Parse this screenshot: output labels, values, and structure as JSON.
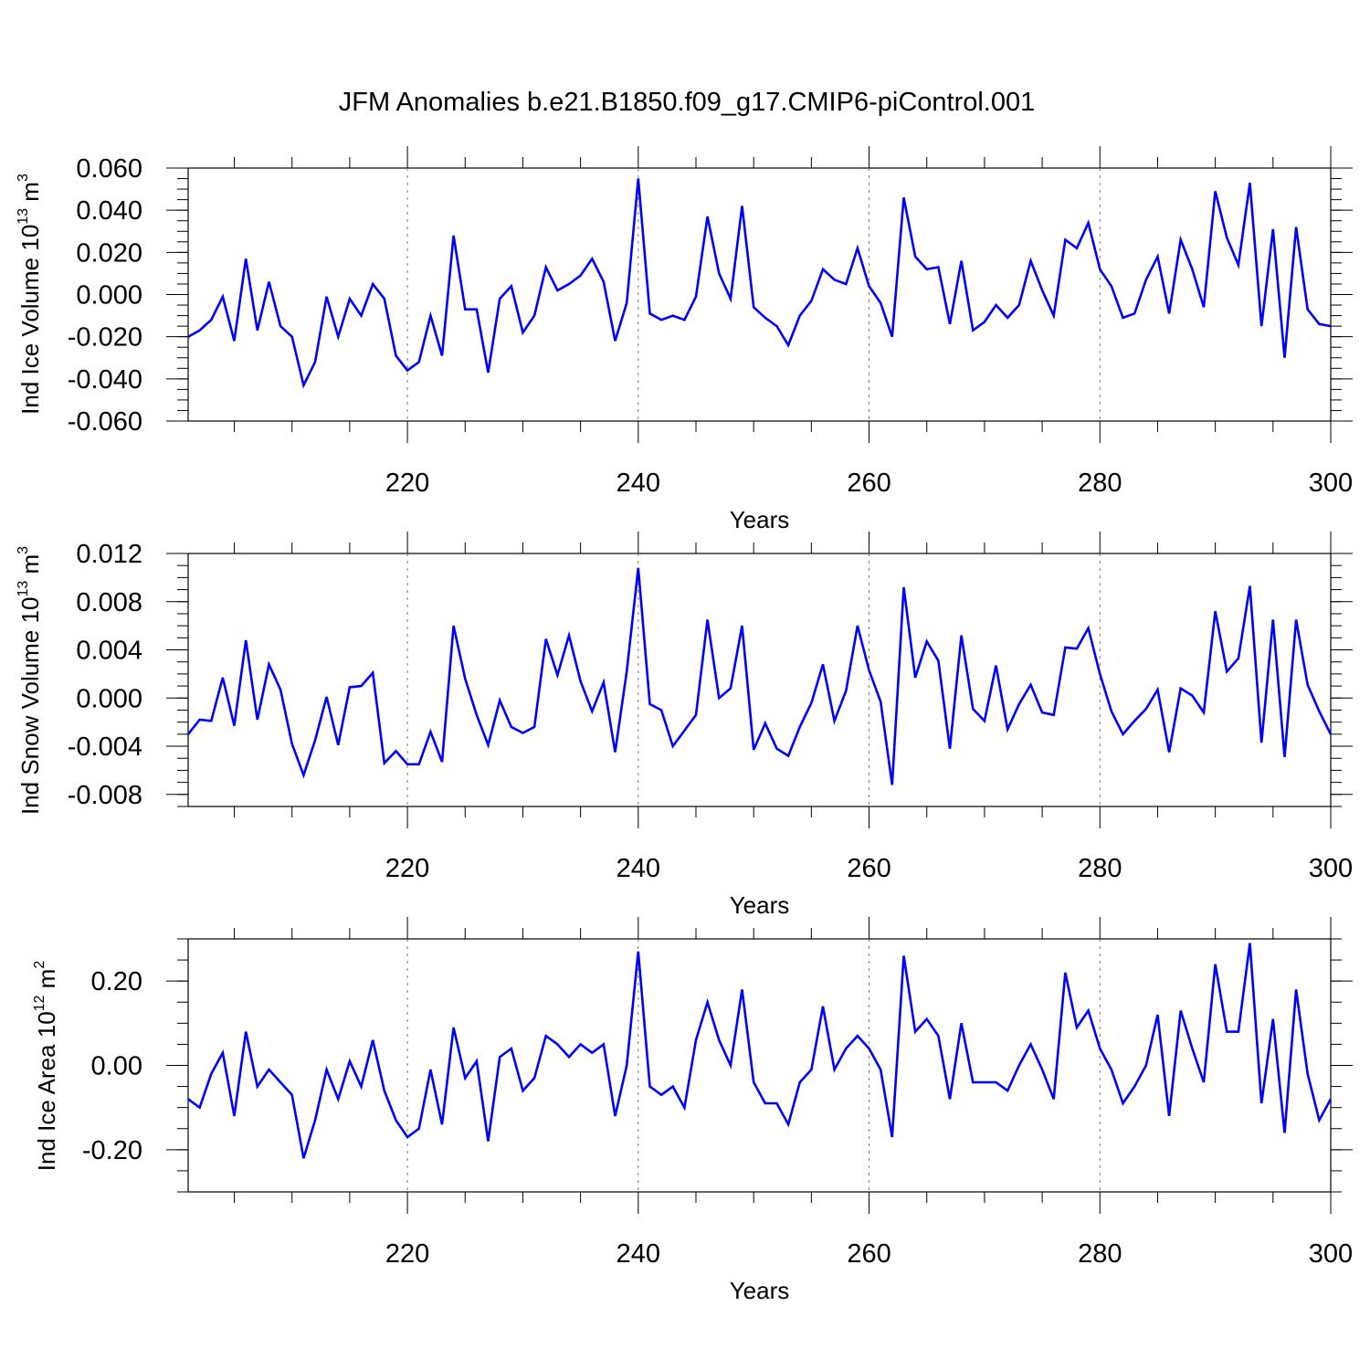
{
  "title": "JFM Anomalies b.e21.B1850.f09_g17.CMIP6-piControl.001",
  "line_color": "#0000ff",
  "chart_data": [
    {
      "type": "line",
      "name": "ice-volume",
      "ylabel": "Ind Ice Volume 10",
      "ylabel_exp": "13",
      "ylabel_unit": " m",
      "ylabel_unit_exp": "3",
      "xlabel": "Years",
      "xlim": [
        201,
        300
      ],
      "ylim": [
        -0.06,
        0.06
      ],
      "xticks": [
        220,
        240,
        260,
        280,
        300
      ],
      "xtick_labels": [
        "220",
        "240",
        "260",
        "280",
        "300"
      ],
      "yticks": [
        -0.06,
        -0.04,
        -0.02,
        0.0,
        0.02,
        0.04,
        0.06
      ],
      "ytick_labels": [
        "-0.060",
        "-0.040",
        "-0.020",
        "0.000",
        "0.020",
        "0.040",
        "0.060"
      ],
      "yminor": 0.005,
      "x_start": 201,
      "values": [
        -0.02,
        -0.017,
        -0.012,
        -0.001,
        -0.022,
        0.017,
        -0.017,
        0.006,
        -0.015,
        -0.02,
        -0.043,
        -0.032,
        -0.001,
        -0.02,
        -0.002,
        -0.01,
        0.005,
        -0.002,
        -0.029,
        -0.036,
        -0.032,
        -0.01,
        -0.029,
        0.028,
        -0.007,
        -0.007,
        -0.037,
        -0.002,
        0.004,
        -0.018,
        -0.01,
        0.013,
        0.002,
        0.005,
        0.009,
        0.017,
        0.006,
        -0.022,
        -0.004,
        0.055,
        -0.009,
        -0.012,
        -0.01,
        -0.012,
        -0.001,
        0.037,
        0.01,
        -0.002,
        0.042,
        -0.006,
        -0.011,
        -0.015,
        -0.024,
        -0.01,
        -0.003,
        0.012,
        0.007,
        0.005,
        0.022,
        0.004,
        -0.004,
        -0.02,
        0.046,
        0.018,
        0.012,
        0.013,
        -0.014,
        0.016,
        -0.017,
        -0.013,
        -0.005,
        -0.011,
        -0.005,
        0.016,
        0.002,
        -0.01,
        0.026,
        0.022,
        0.034,
        0.012,
        0.004,
        -0.011,
        -0.009,
        0.007,
        0.018,
        -0.009,
        0.026,
        0.012,
        -0.006,
        0.049,
        0.027,
        0.014,
        0.053,
        -0.015,
        0.031,
        -0.03,
        0.032,
        -0.007,
        -0.014,
        -0.015
      ]
    },
    {
      "type": "line",
      "name": "snow-volume",
      "ylabel": "Ind Snow Volume 10",
      "ylabel_exp": "13",
      "ylabel_unit": " m",
      "ylabel_unit_exp": "3",
      "xlabel": "Years",
      "xlim": [
        201,
        300
      ],
      "ylim": [
        -0.009,
        0.012
      ],
      "xticks": [
        220,
        240,
        260,
        280,
        300
      ],
      "xtick_labels": [
        "220",
        "240",
        "260",
        "280",
        "300"
      ],
      "yticks": [
        -0.008,
        -0.004,
        0.0,
        0.004,
        0.008,
        0.012
      ],
      "ytick_labels": [
        "-0.008",
        "-0.004",
        "0.000",
        "0.004",
        "0.008",
        "0.012"
      ],
      "yminor": 0.001,
      "x_start": 201,
      "values": [
        -0.003,
        -0.0018,
        -0.0019,
        0.0017,
        -0.0023,
        0.0048,
        -0.0018,
        0.0028,
        0.0007,
        -0.0038,
        -0.0064,
        -0.0035,
        0.0001,
        -0.0039,
        0.0009,
        0.001,
        0.0021,
        -0.0054,
        -0.0044,
        -0.0055,
        -0.0055,
        -0.0028,
        -0.0053,
        0.006,
        0.0016,
        -0.0014,
        -0.0039,
        -0.0002,
        -0.0024,
        -0.0029,
        -0.0024,
        0.0049,
        0.0019,
        0.0052,
        0.0014,
        -0.0011,
        0.0013,
        -0.0045,
        0.0022,
        0.0108,
        -0.0005,
        -0.001,
        -0.004,
        -0.0027,
        -0.0014,
        0.0065,
        0.0,
        0.0008,
        0.006,
        -0.0043,
        -0.0021,
        -0.0042,
        -0.0048,
        -0.0024,
        -0.0004,
        0.0028,
        -0.0019,
        0.0006,
        0.006,
        0.0023,
        -0.0003,
        -0.0072,
        0.0092,
        0.0017,
        0.0047,
        0.0031,
        -0.0042,
        0.0052,
        -0.0009,
        -0.0019,
        0.0027,
        -0.0026,
        -0.0005,
        0.0011,
        -0.0012,
        -0.0014,
        0.0042,
        0.0041,
        0.0058,
        0.002,
        -0.0011,
        -0.003,
        -0.0019,
        -0.0009,
        0.0007,
        -0.0045,
        0.0008,
        0.0002,
        -0.0012,
        0.0072,
        0.0022,
        0.0033,
        0.0093,
        -0.0037,
        0.0065,
        -0.0049,
        0.0065,
        0.0011,
        -0.0011,
        -0.003
      ]
    },
    {
      "type": "line",
      "name": "ice-area",
      "ylabel": "Ind Ice Area 10",
      "ylabel_exp": "12",
      "ylabel_unit": " m",
      "ylabel_unit_exp": "2",
      "xlabel": "Years",
      "xlim": [
        201,
        300
      ],
      "ylim": [
        -0.3,
        0.3
      ],
      "xticks": [
        220,
        240,
        260,
        280,
        300
      ],
      "xtick_labels": [
        "220",
        "240",
        "260",
        "280",
        "300"
      ],
      "yticks": [
        -0.2,
        0.0,
        0.2
      ],
      "ytick_labels": [
        "-0.20",
        "0.00",
        "0.20"
      ],
      "yminor": 0.05,
      "x_start": 201,
      "values": [
        -0.08,
        -0.1,
        -0.02,
        0.03,
        -0.12,
        0.08,
        -0.05,
        -0.01,
        -0.04,
        -0.07,
        -0.22,
        -0.13,
        -0.01,
        -0.08,
        0.01,
        -0.05,
        0.06,
        -0.06,
        -0.13,
        -0.17,
        -0.15,
        -0.01,
        -0.14,
        0.09,
        -0.03,
        0.01,
        -0.18,
        0.02,
        0.04,
        -0.06,
        -0.03,
        0.07,
        0.05,
        0.02,
        0.05,
        0.03,
        0.05,
        -0.12,
        0.0,
        0.27,
        -0.05,
        -0.07,
        -0.05,
        -0.1,
        0.06,
        0.15,
        0.06,
        0.0,
        0.18,
        -0.04,
        -0.09,
        -0.09,
        -0.14,
        -0.04,
        -0.01,
        0.14,
        -0.01,
        0.04,
        0.07,
        0.04,
        -0.01,
        -0.17,
        0.26,
        0.08,
        0.11,
        0.07,
        -0.08,
        0.1,
        -0.04,
        -0.04,
        -0.04,
        -0.06,
        0.0,
        0.05,
        -0.01,
        -0.08,
        0.22,
        0.09,
        0.13,
        0.04,
        -0.01,
        -0.09,
        -0.05,
        0.0,
        0.12,
        -0.12,
        0.13,
        0.04,
        -0.04,
        0.24,
        0.08,
        0.08,
        0.29,
        -0.09,
        0.11,
        -0.16,
        0.18,
        -0.02,
        -0.13,
        -0.08
      ]
    }
  ]
}
